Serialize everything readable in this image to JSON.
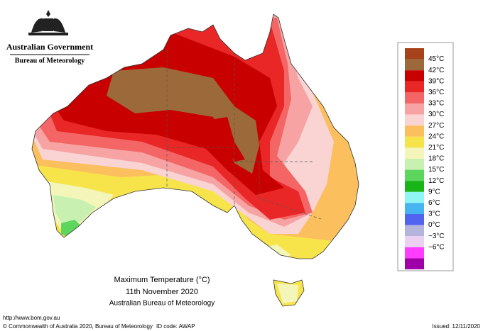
{
  "header": {
    "government": "Australian Government",
    "bureau": "Bureau of Meteorology"
  },
  "map": {
    "title": "Maximum Temperature (°C)",
    "date": "11th November 2020",
    "source": "Australian Bureau of Meteorology"
  },
  "legend": {
    "labels": [
      "45°C",
      "42°C",
      "39°C",
      "36°C",
      "33°C",
      "30°C",
      "27°C",
      "24°C",
      "21°C",
      "18°C",
      "15°C",
      "12°C",
      "9°C",
      "6°C",
      "3°C",
      "0°C",
      "−3°C",
      "−6°C"
    ],
    "colors": [
      "#a5421a",
      "#9c6a3a",
      "#c80000",
      "#e92727",
      "#f46666",
      "#f7a3a3",
      "#fad3d3",
      "#fbbf5e",
      "#f7e44a",
      "#f3f6b8",
      "#c8f0b0",
      "#5cd65c",
      "#18b418",
      "#8ff5f5",
      "#46b4f0",
      "#5064f0",
      "#b4b4dc",
      "#ecd0f2",
      "#ff3cff",
      "#a000a8"
    ]
  },
  "footer": {
    "url": "http://www.bom.gov.au",
    "copyright": "© Commonwealth of Australia 2020, Bureau of Meteorology",
    "id_code": "ID code: AWAP",
    "issued": "Issued: 12/11/2020"
  }
}
